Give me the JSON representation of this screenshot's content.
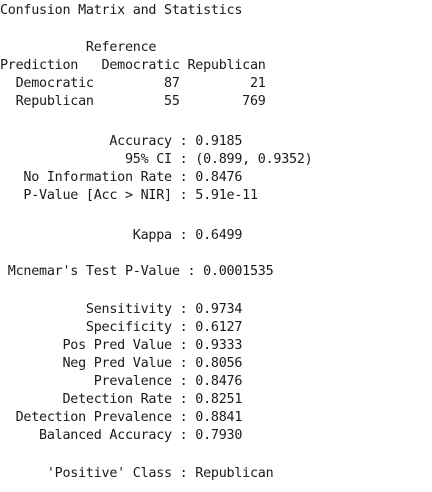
{
  "console": {
    "lines": [
      "Confusion Matrix and Statistics",
      "           Reference",
      "Prediction   Democratic Republican",
      "  Democratic         87         21",
      "  Republican         55        769",
      "              Accuracy : 0.9185",
      "                95% CI : (0.899, 0.9352)",
      "   No Information Rate : 0.8476",
      "   P-Value [Acc > NIR] : 5.91e-11",
      "                 Kappa : 0.6499",
      " Mcnemar's Test P-Value : 0.0001535",
      "           Sensitivity : 0.9734",
      "           Specificity : 0.6127",
      "        Pos Pred Value : 0.9333",
      "        Neg Pred Value : 0.8056",
      "            Prevalence : 0.8476",
      "        Detection Rate : 0.8251",
      "  Detection Prevalence : 0.8841",
      "     Balanced Accuracy : 0.7930",
      "      'Positive' Class : Republican"
    ]
  }
}
